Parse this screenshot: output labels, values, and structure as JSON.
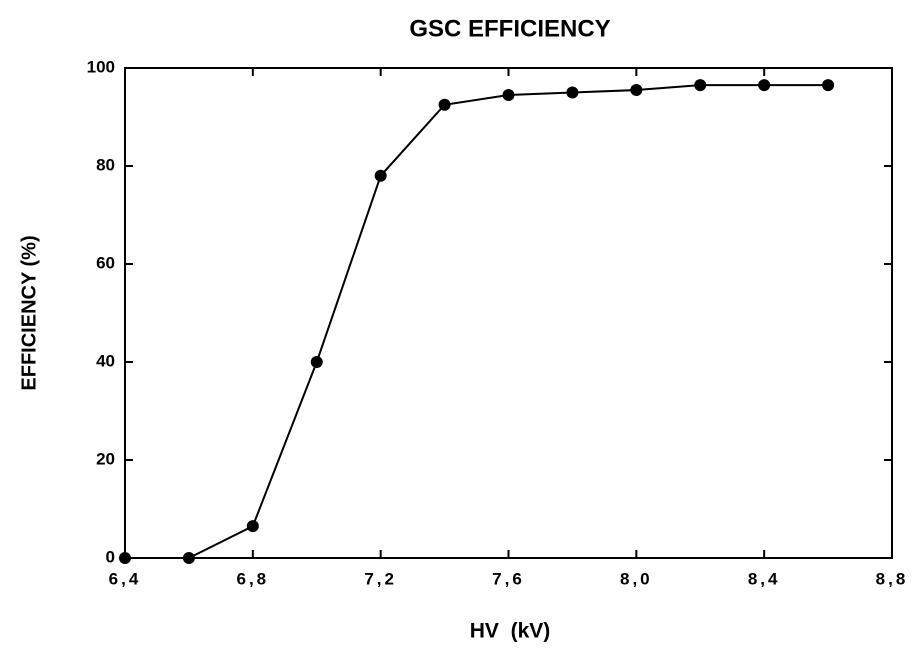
{
  "chart_data": {
    "type": "line",
    "title": "GSC EFFICIENCY",
    "x_label": "HV  (kV)",
    "y_label": "EFFICIENCY (%)",
    "x": [
      6.4,
      6.6,
      6.8,
      7.0,
      7.2,
      7.4,
      7.6,
      7.8,
      8.0,
      8.2,
      8.4,
      8.6
    ],
    "series": [
      {
        "name": "GSC",
        "color": "#000000",
        "values": [
          0,
          0,
          6.5,
          40,
          78,
          92.5,
          94.5,
          95,
          95.5,
          96.5,
          96.5,
          96.5
        ]
      }
    ],
    "xlim": [
      6.4,
      8.8
    ],
    "xticks": [
      {
        "value": 6.4,
        "label": "6,4"
      },
      {
        "value": 6.8,
        "label": "6,8"
      },
      {
        "value": 7.2,
        "label": "7,2"
      },
      {
        "value": 7.6,
        "label": "7,6"
      },
      {
        "value": 8.0,
        "label": "8,0"
      },
      {
        "value": 8.4,
        "label": "8,4"
      },
      {
        "value": 8.8,
        "label": "8,8"
      }
    ],
    "ylim": [
      0,
      100
    ],
    "yticks": [
      0,
      20,
      40,
      60,
      80,
      100
    ],
    "grid": false
  }
}
